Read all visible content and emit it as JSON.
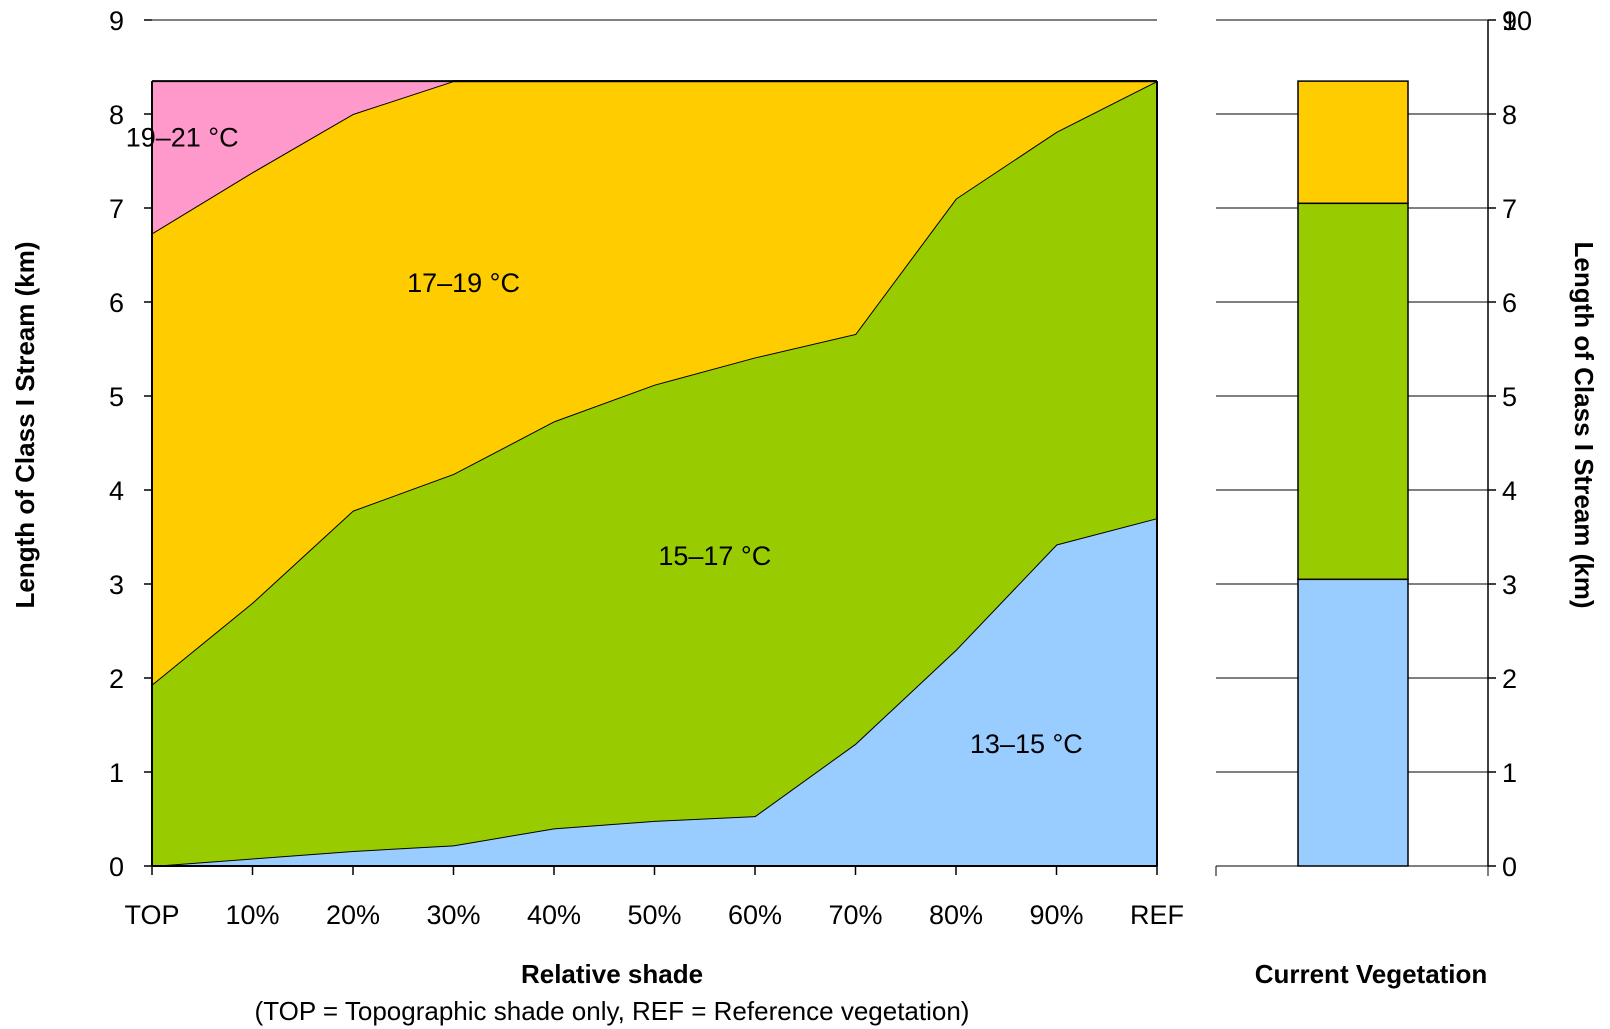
{
  "chart_data": [
    {
      "type": "area",
      "stacked": true,
      "categories": [
        "TOP",
        "10%",
        "20%",
        "30%",
        "40%",
        "50%",
        "60%",
        "70%",
        "80%",
        "90%",
        "REF"
      ],
      "xlabel": "Relative shade",
      "xnote": "(TOP = Topographic shade only, REF = Reference vegetation)",
      "ylabel": "Length of Class I Stream (km)",
      "ylim": [
        0,
        9
      ],
      "yticks": [
        0,
        1,
        2,
        3,
        4,
        5,
        6,
        7,
        8,
        9
      ],
      "grid": true,
      "series": [
        {
          "name": "13–15 °C",
          "color": "#99ccff",
          "values": [
            0.0,
            0.08,
            0.16,
            0.22,
            0.4,
            0.48,
            0.53,
            1.3,
            2.3,
            3.42,
            3.7
          ]
        },
        {
          "name": "15–17 °C",
          "color": "#99cc00",
          "values": [
            1.93,
            2.72,
            3.62,
            3.95,
            4.33,
            4.64,
            4.88,
            4.36,
            4.8,
            4.39,
            4.65
          ]
        },
        {
          "name": "17–19 °C",
          "color": "#ffcc00",
          "values": [
            4.8,
            4.58,
            4.22,
            4.18,
            3.62,
            3.23,
            2.94,
            2.69,
            1.25,
            0.54,
            0.0
          ]
        },
        {
          "name": "19–21 °C",
          "color": "#ff99cc",
          "values": [
            1.62,
            0.97,
            0.35,
            0.0,
            0.0,
            0.0,
            0.0,
            0.0,
            0.0,
            0.0,
            0.0
          ]
        }
      ],
      "zone_labels": [
        {
          "text": "19–21 °C",
          "x": 0.3,
          "y": 7.75
        },
        {
          "text": "17–19 °C",
          "x": 3.1,
          "y": 6.2
        },
        {
          "text": "15–17 °C",
          "x": 5.6,
          "y": 3.3
        },
        {
          "text": "13–15 °C",
          "x": 8.7,
          "y": 1.3
        }
      ]
    },
    {
      "type": "bar",
      "stacked": true,
      "categories": [
        "Current Vegetation"
      ],
      "xlabel": "Current Vegetation",
      "ylabel": "Length of Class I Stream (km)",
      "ylim": [
        0,
        9
      ],
      "yticks": [
        0,
        1,
        2,
        3,
        4,
        5,
        6,
        7,
        8,
        9
      ],
      "top_tick_overlap": "10",
      "grid": true,
      "series": [
        {
          "name": "13–15 °C",
          "color": "#99ccff",
          "values": [
            3.05
          ]
        },
        {
          "name": "15–17 °C",
          "color": "#99cc00",
          "values": [
            4.0
          ]
        },
        {
          "name": "17–19 °C",
          "color": "#ffcc00",
          "values": [
            1.3
          ]
        }
      ]
    }
  ]
}
